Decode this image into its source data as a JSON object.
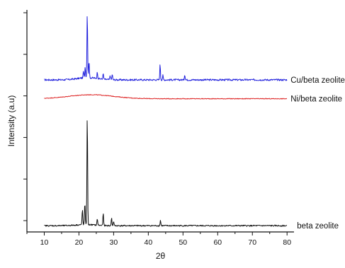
{
  "chart_data": {
    "type": "line",
    "xlabel": "2θ",
    "ylabel": "Intensity (a.u)",
    "xlim": [
      5,
      82
    ],
    "x_ticks": [
      10,
      20,
      30,
      40,
      50,
      60,
      70,
      80
    ],
    "y_tick_marks": 6,
    "grid": false,
    "legend": "inline-right",
    "series": [
      {
        "name": "Cu/beta zeolite",
        "color": "#2222dd",
        "baseline": 0.685,
        "noise": 0.004,
        "hump": {
          "center": 22.5,
          "width": 4,
          "height": 0.01
        },
        "peaks": [
          {
            "x": 21.3,
            "h": 0.03
          },
          {
            "x": 21.8,
            "h": 0.05
          },
          {
            "x": 22.4,
            "h": 0.3
          },
          {
            "x": 22.9,
            "h": 0.08
          },
          {
            "x": 25.3,
            "h": 0.03
          },
          {
            "x": 27.0,
            "h": 0.025
          },
          {
            "x": 29.0,
            "h": 0.02
          },
          {
            "x": 29.6,
            "h": 0.025
          },
          {
            "x": 43.4,
            "h": 0.07
          },
          {
            "x": 44.2,
            "h": 0.02
          },
          {
            "x": 50.5,
            "h": 0.025
          }
        ]
      },
      {
        "name": "Ni/beta zeolite",
        "color": "#dd2222",
        "baseline": 0.6,
        "noise": 0.0015,
        "hump": {
          "center": 23.5,
          "width": 9,
          "height": 0.018
        },
        "peaks": []
      },
      {
        "name": "beta zeolite",
        "color": "#111111",
        "baseline": 0.028,
        "noise": 0.003,
        "hump": {
          "center": 22,
          "width": 4,
          "height": 0.005
        },
        "peaks": [
          {
            "x": 21.0,
            "h": 0.07
          },
          {
            "x": 21.7,
            "h": 0.1
          },
          {
            "x": 22.4,
            "h": 0.51
          },
          {
            "x": 25.3,
            "h": 0.03
          },
          {
            "x": 27.0,
            "h": 0.055
          },
          {
            "x": 29.4,
            "h": 0.035
          },
          {
            "x": 30.0,
            "h": 0.02
          },
          {
            "x": 43.5,
            "h": 0.025
          }
        ]
      }
    ]
  }
}
